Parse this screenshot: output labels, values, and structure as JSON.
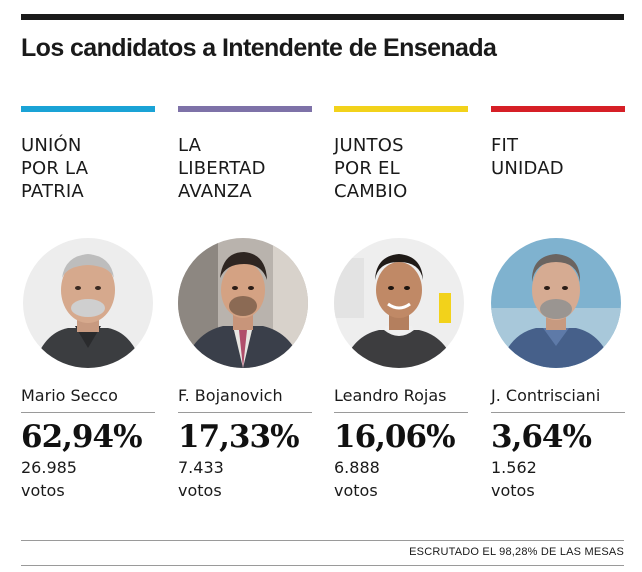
{
  "title": "Los candidatos a Intendente de Ensenada",
  "footnote": "ESCRUTADO EL 98,28% DE LAS MESAS",
  "candidates": [
    {
      "party_lines": [
        "UNIÓN",
        "POR LA",
        "PATRIA"
      ],
      "name": "Mario Secco",
      "percent": "62,94%",
      "votes": "26.985",
      "votes_label": "votos",
      "color": "#1aa3d6"
    },
    {
      "party_lines": [
        "LA",
        "LIBERTAD",
        "AVANZA"
      ],
      "name": "F. Bojanovich",
      "percent": "17,33%",
      "votes": "7.433",
      "votes_label": "votos",
      "color": "#7e72a8"
    },
    {
      "party_lines": [
        "JUNTOS",
        "POR EL",
        "CAMBIO"
      ],
      "name": "Leandro Rojas",
      "percent": "16,06%",
      "votes": "6.888",
      "votes_label": "votos",
      "color": "#f2d21b"
    },
    {
      "party_lines": [
        "FIT",
        "UNIDAD"
      ],
      "name": "J. Contrisciani",
      "percent": "3,64%",
      "votes": "1.562",
      "votes_label": "votos",
      "color": "#d61f26"
    }
  ]
}
